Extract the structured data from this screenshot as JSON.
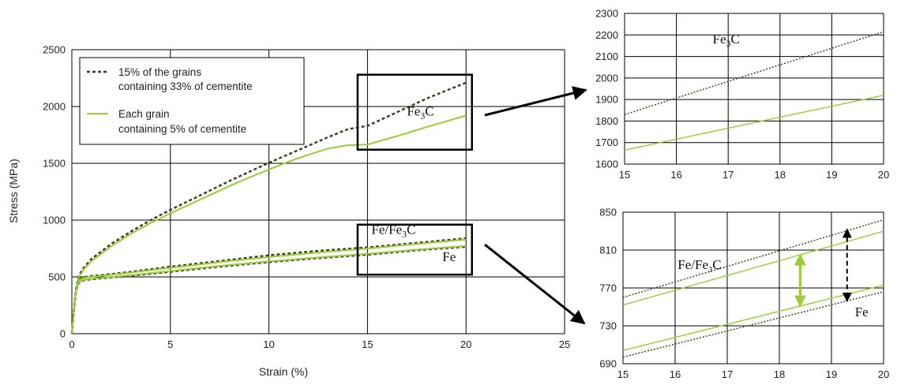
{
  "chart_data": [
    {
      "id": "main",
      "type": "line",
      "xlabel": "Strain (%)",
      "ylabel": "Stress (MPa)",
      "xlim": [
        0,
        25
      ],
      "ylim": [
        0,
        2500
      ],
      "xticks": [
        0,
        5,
        10,
        15,
        20,
        25
      ],
      "yticks": [
        0,
        500,
        1000,
        1500,
        2000,
        2500
      ],
      "grid": true,
      "legend_placement": "top-left",
      "legend": [
        {
          "style": "dotted",
          "line1": "15% of the grains",
          "line2": "containing 33% of cementite"
        },
        {
          "style": "solid",
          "line1": "Each grain",
          "line2": "containing 5% of cementite"
        }
      ],
      "series": [
        {
          "style": "dotted",
          "group": "Fe3C",
          "x": [
            0,
            0.1,
            0.2,
            0.3,
            0.4,
            0.6,
            1,
            2,
            3,
            4,
            5,
            6,
            7,
            8,
            9,
            10,
            11,
            12,
            13,
            14,
            15,
            16,
            17,
            18,
            19,
            20
          ],
          "y": [
            0,
            200,
            380,
            470,
            525,
            580,
            660,
            790,
            900,
            1000,
            1090,
            1175,
            1260,
            1345,
            1425,
            1505,
            1580,
            1655,
            1730,
            1800,
            1830,
            1910,
            1990,
            2070,
            2140,
            2210
          ]
        },
        {
          "style": "solid",
          "group": "Fe3C",
          "x": [
            0,
            0.1,
            0.2,
            0.3,
            0.4,
            0.6,
            1,
            2,
            3,
            4,
            5,
            6,
            7,
            8,
            9,
            10,
            11,
            12,
            13,
            14,
            15,
            16,
            17,
            18,
            19,
            20
          ],
          "y": [
            0,
            200,
            370,
            460,
            510,
            565,
            640,
            770,
            880,
            975,
            1060,
            1140,
            1220,
            1300,
            1375,
            1445,
            1515,
            1575,
            1630,
            1660,
            1665,
            1715,
            1765,
            1820,
            1870,
            1920
          ]
        },
        {
          "style": "dotted",
          "group": "Fe/Fe3C",
          "x": [
            0,
            0.1,
            0.2,
            0.3,
            0.4,
            0.6,
            1,
            2,
            3,
            5,
            7.5,
            10,
            12.5,
            15,
            17.5,
            20
          ],
          "y": [
            0,
            200,
            380,
            455,
            480,
            498,
            508,
            525,
            545,
            590,
            640,
            690,
            730,
            760,
            800,
            840
          ]
        },
        {
          "style": "solid",
          "group": "Fe/Fe3C",
          "x": [
            0,
            0.1,
            0.2,
            0.3,
            0.4,
            0.6,
            1,
            2,
            3,
            5,
            7.5,
            10,
            12.5,
            15,
            17.5,
            20
          ],
          "y": [
            0,
            200,
            375,
            450,
            475,
            492,
            502,
            518,
            538,
            580,
            630,
            675,
            715,
            750,
            790,
            830
          ]
        },
        {
          "style": "dotted",
          "group": "Fe",
          "x": [
            0,
            0.1,
            0.2,
            0.3,
            0.4,
            0.6,
            1,
            2,
            3,
            5,
            7.5,
            10,
            12.5,
            15,
            17.5,
            20
          ],
          "y": [
            0,
            190,
            360,
            430,
            455,
            470,
            480,
            495,
            510,
            545,
            590,
            630,
            665,
            695,
            735,
            765
          ]
        },
        {
          "style": "solid",
          "group": "Fe",
          "x": [
            0,
            0.1,
            0.2,
            0.3,
            0.4,
            0.6,
            1,
            2,
            3,
            5,
            7.5,
            10,
            12.5,
            15,
            17.5,
            20
          ],
          "y": [
            0,
            195,
            365,
            435,
            460,
            475,
            485,
            500,
            515,
            552,
            597,
            637,
            672,
            703,
            740,
            772
          ]
        }
      ],
      "annotations": [
        {
          "id": "fe3c-label",
          "text": "Fe3C",
          "base": "Fe",
          "sub": "3",
          "tail": "C",
          "x": 17,
          "y": 1920
        },
        {
          "id": "fefe3c-label",
          "text": "Fe/Fe3C",
          "base": "Fe/Fe",
          "sub": "3",
          "tail": "C",
          "x": 15.2,
          "y": 880
        },
        {
          "id": "fe-label",
          "text": "Fe",
          "base": "Fe",
          "sub": "",
          "tail": "",
          "x": 18.8,
          "y": 640
        }
      ],
      "boxes": [
        {
          "id": "box-top",
          "x": [
            14.5,
            20.3
          ],
          "y": [
            1620,
            2280
          ]
        },
        {
          "id": "box-bottom",
          "x": [
            14.5,
            20.3
          ],
          "y": [
            520,
            960
          ]
        }
      ]
    },
    {
      "id": "zoom-top",
      "type": "line",
      "xlim": [
        15,
        20
      ],
      "ylim": [
        1600,
        2300
      ],
      "xticks": [
        15,
        16,
        17,
        18,
        19,
        20
      ],
      "yticks": [
        1600,
        1700,
        1800,
        1900,
        2000,
        2100,
        2200,
        2300
      ],
      "grid": true,
      "series": [
        {
          "style": "dotted",
          "x": [
            15,
            20
          ],
          "y": [
            1830,
            2215
          ]
        },
        {
          "style": "solid",
          "x": [
            15,
            20
          ],
          "y": [
            1665,
            1920
          ]
        }
      ],
      "annotations": [
        {
          "id": "zoom-fe3c-label",
          "text": "Fe3C",
          "base": "Fe",
          "sub": "3",
          "tail": "C",
          "x": 16.7,
          "y": 2160
        }
      ]
    },
    {
      "id": "zoom-bottom",
      "type": "line",
      "xlim": [
        15,
        20
      ],
      "ylim": [
        690,
        850
      ],
      "xticks": [
        15,
        16,
        17,
        18,
        19,
        20
      ],
      "yticks": [
        690,
        730,
        770,
        810,
        850
      ],
      "grid": true,
      "series": [
        {
          "style": "dotted",
          "x": [
            15,
            20
          ],
          "y": [
            760,
            842
          ]
        },
        {
          "style": "solid",
          "x": [
            15,
            20
          ],
          "y": [
            752,
            830
          ]
        },
        {
          "style": "solid",
          "x": [
            15,
            20
          ],
          "y": [
            704,
            773
          ]
        },
        {
          "style": "dotted",
          "x": [
            15,
            20
          ],
          "y": [
            697,
            766
          ]
        }
      ],
      "annotations": [
        {
          "id": "zoom-fefe3c-label",
          "text": "Fe/Fe3C",
          "base": "Fe/Fe",
          "sub": "3",
          "tail": "C",
          "x": 16.05,
          "y": 790
        },
        {
          "id": "zoom-fe-label",
          "text": "Fe",
          "base": "Fe",
          "sub": "",
          "tail": "",
          "x": 19.45,
          "y": 740
        }
      ],
      "arrows": [
        {
          "id": "green-double-arrow",
          "style": "solid",
          "x": 18.4,
          "y": [
            805,
            751
          ]
        },
        {
          "id": "black-dashed-double-arrow",
          "style": "dashed",
          "x": 19.3,
          "y": [
            832,
            756
          ]
        }
      ]
    }
  ],
  "colors": {
    "solid_series": "#99cc33",
    "dotted_series": "#3a3a1e",
    "grid": "#000000",
    "frame": "#000000",
    "text": "#222222"
  }
}
